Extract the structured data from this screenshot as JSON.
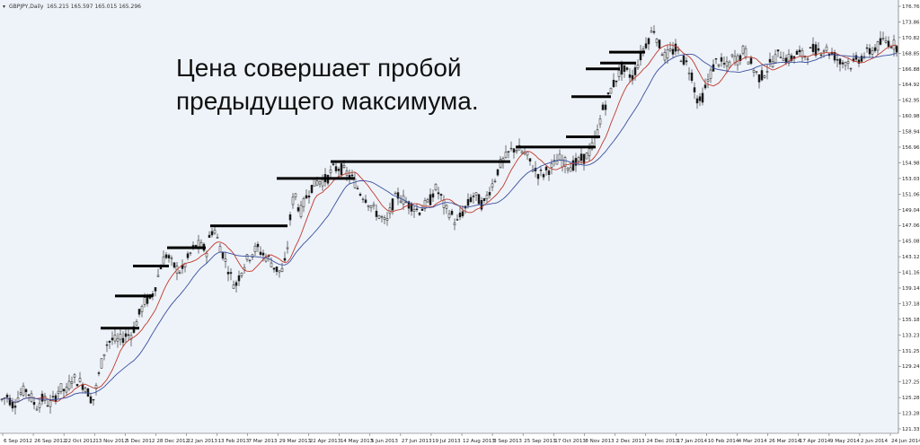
{
  "header": {
    "symbol": "GBPJPY,Daily",
    "ohlc": "165.215 165.597 165.015 165.296"
  },
  "annotation": {
    "line1": "Цена совершает пробой",
    "line2": "предыдущего максимума."
  },
  "colors": {
    "background": "#eef3f9",
    "candle": "#1a1a1a",
    "ma_fast": "#c0392b",
    "ma_slow": "#3a4fa0",
    "resistance": "#000000"
  },
  "chart_data": {
    "type": "candlestick",
    "title": "",
    "xlabel": "",
    "ylabel": "",
    "ylim": [
      120,
      178
    ],
    "y_ticks": [
      "176.760",
      "173.865",
      "170.820",
      "168.855",
      "166.885",
      "164.925",
      "162.955",
      "160.985",
      "158.945",
      "156.960",
      "154.980",
      "153.035",
      "151.065",
      "149.045",
      "147.060",
      "145.080",
      "143.125",
      "141.160",
      "139.145",
      "137.180",
      "135.185",
      "133.230",
      "131.255",
      "129.245",
      "127.250",
      "125.285",
      "123.285",
      "121.330"
    ],
    "x_ticks": [
      "6 Sep 2012",
      "26 Sep 2012",
      "22 Oct 2012",
      "13 Nov 2012",
      "5 Dec 2012",
      "28 Dec 2012",
      "22 Jan 2013",
      "13 Feb 2013",
      "7 Mar 2013",
      "29 Mar 2013",
      "22 Apr 2013",
      "14 May 2013",
      "5 Jun 2013",
      "27 Jun 2013",
      "19 Jul 2013",
      "12 Aug 2013",
      "3 Sep 2013",
      "25 Sep 2013",
      "17 Oct 2013",
      "8 Nov 2013",
      "2 Dec 2013",
      "24 Dec 2013",
      "17 Jan 2014",
      "10 Feb 2014",
      "4 Mar 2014",
      "26 Mar 2014",
      "17 Apr 2014",
      "9 May 2014",
      "2 Jun 2014",
      "24 Jun 2014"
    ],
    "price_path": [
      [
        0,
        123.8
      ],
      [
        8,
        124.5
      ],
      [
        15,
        123.2
      ],
      [
        22,
        124.8
      ],
      [
        30,
        125.4
      ],
      [
        40,
        123.0
      ],
      [
        48,
        124.2
      ],
      [
        55,
        123.3
      ],
      [
        60,
        123.9
      ],
      [
        66,
        125.6
      ],
      [
        74,
        125.1
      ],
      [
        80,
        127.0
      ],
      [
        88,
        126.5
      ],
      [
        95,
        125.8
      ],
      [
        100,
        124.5
      ],
      [
        103,
        123.6
      ],
      [
        106,
        125.0
      ],
      [
        112,
        128.5
      ],
      [
        118,
        131.5
      ],
      [
        124,
        132.2
      ],
      [
        132,
        132.0
      ],
      [
        140,
        132.8
      ],
      [
        146,
        133.0
      ],
      [
        150,
        134.0
      ],
      [
        156,
        136.0
      ],
      [
        162,
        137.6
      ],
      [
        168,
        137.8
      ],
      [
        174,
        140.0
      ],
      [
        180,
        142.8
      ],
      [
        186,
        144.0
      ],
      [
        190,
        142.8
      ],
      [
        196,
        142.0
      ],
      [
        202,
        141.5
      ],
      [
        208,
        143.0
      ],
      [
        214,
        144.5
      ],
      [
        220,
        145.2
      ],
      [
        226,
        144.8
      ],
      [
        230,
        144.3
      ],
      [
        234,
        146.6
      ],
      [
        238,
        147.6
      ],
      [
        242,
        146.0
      ],
      [
        248,
        144.0
      ],
      [
        254,
        142.0
      ],
      [
        258,
        140.5
      ],
      [
        262,
        139.5
      ],
      [
        268,
        141.5
      ],
      [
        274,
        143.0
      ],
      [
        280,
        144.0
      ],
      [
        286,
        144.8
      ],
      [
        292,
        144.0
      ],
      [
        300,
        143.2
      ],
      [
        306,
        142.0
      ],
      [
        312,
        141.5
      ],
      [
        316,
        141.8
      ],
      [
        320,
        145.0
      ],
      [
        324,
        150.0
      ],
      [
        328,
        152.5
      ],
      [
        334,
        149.5
      ],
      [
        340,
        151.5
      ],
      [
        346,
        153.0
      ],
      [
        352,
        153.8
      ],
      [
        358,
        154.0
      ],
      [
        364,
        154.2
      ],
      [
        370,
        155.5
      ],
      [
        378,
        155.8
      ],
      [
        386,
        155.0
      ],
      [
        394,
        154.0
      ],
      [
        400,
        152.5
      ],
      [
        408,
        151.5
      ],
      [
        416,
        150.0
      ],
      [
        424,
        149.0
      ],
      [
        430,
        148.0
      ],
      [
        436,
        150.5
      ],
      [
        442,
        152.0
      ],
      [
        448,
        151.5
      ],
      [
        454,
        150.8
      ],
      [
        460,
        150.5
      ],
      [
        466,
        149.8
      ],
      [
        472,
        150.5
      ],
      [
        478,
        151.0
      ],
      [
        484,
        153.0
      ],
      [
        490,
        152.0
      ],
      [
        496,
        150.0
      ],
      [
        502,
        149.5
      ],
      [
        508,
        148.0
      ],
      [
        514,
        149.5
      ],
      [
        520,
        150.5
      ],
      [
        526,
        152.0
      ],
      [
        532,
        151.5
      ],
      [
        538,
        150.5
      ],
      [
        544,
        152.5
      ],
      [
        550,
        154.0
      ],
      [
        556,
        156.0
      ],
      [
        562,
        157.0
      ],
      [
        568,
        158.0
      ],
      [
        574,
        158.5
      ],
      [
        580,
        158.0
      ],
      [
        586,
        157.5
      ],
      [
        592,
        156.0
      ],
      [
        598,
        155.0
      ],
      [
        604,
        154.8
      ],
      [
        610,
        155.5
      ],
      [
        616,
        156.0
      ],
      [
        622,
        157.0
      ],
      [
        628,
        156.5
      ],
      [
        634,
        156.0
      ],
      [
        640,
        156.2
      ],
      [
        646,
        156.8
      ],
      [
        652,
        157.2
      ],
      [
        658,
        158.3
      ],
      [
        664,
        160.0
      ],
      [
        670,
        163.5
      ],
      [
        676,
        165.0
      ],
      [
        680,
        166.5
      ],
      [
        686,
        168.0
      ],
      [
        692,
        169.2
      ],
      [
        698,
        168.8
      ],
      [
        704,
        168.2
      ],
      [
        710,
        170.0
      ],
      [
        716,
        172.0
      ],
      [
        722,
        173.5
      ],
      [
        728,
        174.8
      ],
      [
        734,
        172.5
      ],
      [
        740,
        171.0
      ],
      [
        746,
        171.5
      ],
      [
        752,
        172.0
      ],
      [
        758,
        171.0
      ],
      [
        764,
        170.0
      ],
      [
        770,
        168.5
      ],
      [
        774,
        166.0
      ],
      [
        778,
        164.5
      ],
      [
        782,
        165.5
      ],
      [
        786,
        167.0
      ],
      [
        792,
        169.0
      ],
      [
        798,
        170.5
      ],
      [
        804,
        170.0
      ],
      [
        810,
        169.5
      ],
      [
        816,
        171.0
      ],
      [
        822,
        170.5
      ],
      [
        828,
        172.0
      ],
      [
        834,
        170.5
      ],
      [
        840,
        169.0
      ],
      [
        846,
        168.0
      ],
      [
        852,
        169.0
      ],
      [
        858,
        170.0
      ],
      [
        864,
        171.0
      ],
      [
        870,
        171.5
      ],
      [
        876,
        170.5
      ],
      [
        882,
        170.8
      ],
      [
        888,
        171.5
      ],
      [
        894,
        171.0
      ],
      [
        900,
        171.5
      ],
      [
        906,
        172.0
      ],
      [
        912,
        171.8
      ],
      [
        918,
        172.2
      ],
      [
        924,
        171.5
      ],
      [
        930,
        171.0
      ],
      [
        936,
        170.0
      ],
      [
        942,
        170.5
      ],
      [
        948,
        169.8
      ],
      [
        954,
        170.5
      ],
      [
        960,
        171.0
      ],
      [
        966,
        171.5
      ],
      [
        972,
        172.0
      ],
      [
        978,
        172.5
      ],
      [
        984,
        173.2
      ],
      [
        990,
        173.0
      ],
      [
        996,
        172.5
      ],
      [
        1000,
        172.2
      ]
    ],
    "resistance_levels": [
      {
        "x_start": 112,
        "x_end": 155,
        "price": 133.8
      },
      {
        "x_start": 128,
        "x_end": 170,
        "price": 138.2
      },
      {
        "x_start": 148,
        "x_end": 188,
        "price": 142.3
      },
      {
        "x_start": 186,
        "x_end": 229,
        "price": 144.8
      },
      {
        "x_start": 234,
        "x_end": 320,
        "price": 147.8
      },
      {
        "x_start": 308,
        "x_end": 395,
        "price": 154.3
      },
      {
        "x_start": 368,
        "x_end": 568,
        "price": 156.6
      },
      {
        "x_start": 574,
        "x_end": 663,
        "price": 158.6
      },
      {
        "x_start": 630,
        "x_end": 668,
        "price": 160.0
      },
      {
        "x_start": 636,
        "x_end": 680,
        "price": 165.5
      },
      {
        "x_start": 652,
        "x_end": 690,
        "price": 169.3
      },
      {
        "x_start": 668,
        "x_end": 708,
        "price": 170.1
      },
      {
        "x_start": 678,
        "x_end": 718,
        "price": 171.6
      }
    ]
  }
}
